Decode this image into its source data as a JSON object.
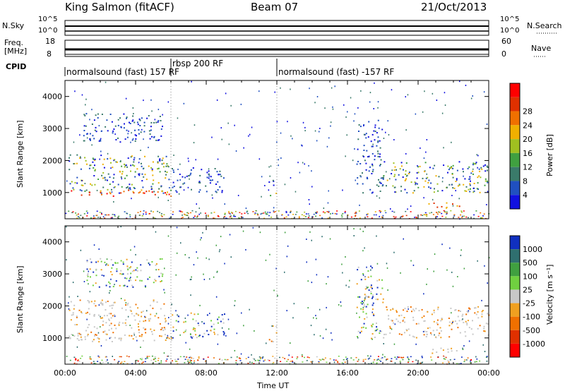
{
  "header": {
    "station": "King Salmon (fitACF)",
    "beam": "Beam 07",
    "date": "21/Oct/2013"
  },
  "noise_panel": {
    "left_label": "N.Sky",
    "right_label": "N.Search",
    "left_ticks": [
      "10^5",
      "10^0"
    ],
    "right_ticks": [
      "10^5",
      "10^0"
    ]
  },
  "freq_panel": {
    "left_label_1": "Freq.",
    "left_label_2": "[MHz]",
    "right_label": "Nave",
    "left_ticks": [
      "18",
      "8"
    ],
    "right_ticks": [
      "60",
      "0"
    ]
  },
  "cpid": {
    "label": "CPID",
    "segments": [
      {
        "start_hour": 0,
        "end_hour": 6,
        "text": "normalsound (fast) 157 RF"
      },
      {
        "start_hour": 6,
        "end_hour": 12,
        "text": "rbsp 200 RF"
      },
      {
        "start_hour": 12,
        "end_hour": 24,
        "text": "normalsound (fast) -157 RF"
      }
    ]
  },
  "x_axis": {
    "label": "Time UT",
    "ticks": [
      "00:00",
      "04:00",
      "08:00",
      "12:00",
      "16:00",
      "20:00",
      "00:00"
    ],
    "range_hours": [
      0,
      24
    ]
  },
  "power_panel": {
    "ylabel": "Slant Range [km]",
    "yticks": [
      "1000",
      "2000",
      "3000",
      "4000"
    ],
    "colorbar_label": "Power [dB]",
    "colorbar_ticks": [
      "4",
      "8",
      "12",
      "16",
      "20",
      "24",
      "28"
    ],
    "colors": [
      "#1010e0",
      "#2050c0",
      "#3a7a6a",
      "#40a040",
      "#a0c020",
      "#f0b000",
      "#f07000",
      "#e03000",
      "#ff0000"
    ]
  },
  "velocity_panel": {
    "ylabel": "Slant Range [km]",
    "yticks": [
      "1000",
      "2000",
      "3000",
      "4000"
    ],
    "colorbar_label": "Velocity [m s⁻¹]",
    "colorbar_ticks": [
      "1000",
      "500",
      "100",
      "25",
      "-25",
      "-100",
      "-500",
      "-1000"
    ],
    "colors": [
      "#1030c0",
      "#2f6f6f",
      "#40a040",
      "#70d040",
      "#c8c8c8",
      "#f0a020",
      "#f07000",
      "#e03000",
      "#ff0000"
    ]
  },
  "chart_data": {
    "type": "heatmap",
    "x_unit": "hours UT",
    "y_unit": "km",
    "ylim": [
      180,
      4500
    ],
    "power_regions": [
      {
        "t0": 0.2,
        "t1": 6.0,
        "r0": 1000,
        "r1": 2200,
        "level": "mixed-green"
      },
      {
        "t0": 0.2,
        "t1": 6.0,
        "r0": 900,
        "r1": 1100,
        "level": "high"
      },
      {
        "t0": 1.0,
        "t1": 5.5,
        "r0": 2600,
        "r1": 3500,
        "level": "low"
      },
      {
        "t0": 6.0,
        "t1": 9.0,
        "r0": 1000,
        "r1": 1800,
        "level": "low"
      },
      {
        "t0": 11.5,
        "t1": 12.0,
        "r0": 900,
        "r1": 1400,
        "level": "mid"
      },
      {
        "t0": 16.5,
        "t1": 18.0,
        "r0": 1000,
        "r1": 3300,
        "level": "low"
      },
      {
        "t0": 18.0,
        "t1": 24.0,
        "r0": 1000,
        "r1": 2000,
        "level": "mixed-green"
      },
      {
        "t0": 20.5,
        "t1": 22.5,
        "r0": 500,
        "r1": 700,
        "level": "high"
      }
    ]
  }
}
